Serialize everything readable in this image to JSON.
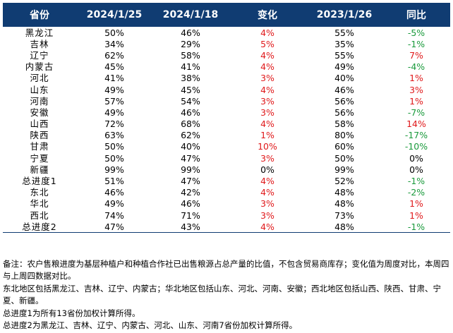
{
  "table": {
    "headers": [
      "省份",
      "2024/1/25",
      "2024/1/18",
      "变化",
      "2023/1/26",
      "同比"
    ],
    "colors": {
      "header_bg": "#103c72",
      "up": "#e0191b",
      "down": "#1a9a3c",
      "flat": "#000000"
    },
    "rows": [
      {
        "province": "黑龙江",
        "cur": "50%",
        "prev": "46%",
        "change": "4%",
        "change_dir": "up",
        "last_year": "55%",
        "yoy": "-5%",
        "yoy_dir": "down"
      },
      {
        "province": "吉林",
        "cur": "34%",
        "prev": "29%",
        "change": "5%",
        "change_dir": "up",
        "last_year": "35%",
        "yoy": "-1%",
        "yoy_dir": "down"
      },
      {
        "province": "辽宁",
        "cur": "62%",
        "prev": "58%",
        "change": "4%",
        "change_dir": "up",
        "last_year": "55%",
        "yoy": "7%",
        "yoy_dir": "up"
      },
      {
        "province": "内蒙古",
        "cur": "45%",
        "prev": "41%",
        "change": "4%",
        "change_dir": "up",
        "last_year": "49%",
        "yoy": "-4%",
        "yoy_dir": "down"
      },
      {
        "province": "河北",
        "cur": "41%",
        "prev": "38%",
        "change": "3%",
        "change_dir": "up",
        "last_year": "40%",
        "yoy": "1%",
        "yoy_dir": "up"
      },
      {
        "province": "山东",
        "cur": "49%",
        "prev": "45%",
        "change": "4%",
        "change_dir": "up",
        "last_year": "46%",
        "yoy": "3%",
        "yoy_dir": "up"
      },
      {
        "province": "河南",
        "cur": "57%",
        "prev": "54%",
        "change": "3%",
        "change_dir": "up",
        "last_year": "56%",
        "yoy": "1%",
        "yoy_dir": "up"
      },
      {
        "province": "安徽",
        "cur": "49%",
        "prev": "46%",
        "change": "3%",
        "change_dir": "up",
        "last_year": "56%",
        "yoy": "-7%",
        "yoy_dir": "down"
      },
      {
        "province": "山西",
        "cur": "72%",
        "prev": "68%",
        "change": "4%",
        "change_dir": "up",
        "last_year": "58%",
        "yoy": "14%",
        "yoy_dir": "up"
      },
      {
        "province": "陕西",
        "cur": "63%",
        "prev": "62%",
        "change": "1%",
        "change_dir": "up",
        "last_year": "80%",
        "yoy": "-17%",
        "yoy_dir": "down"
      },
      {
        "province": "甘肃",
        "cur": "50%",
        "prev": "40%",
        "change": "10%",
        "change_dir": "up",
        "last_year": "60%",
        "yoy": "-10%",
        "yoy_dir": "down"
      },
      {
        "province": "宁夏",
        "cur": "50%",
        "prev": "47%",
        "change": "3%",
        "change_dir": "up",
        "last_year": "50%",
        "yoy": "0%",
        "yoy_dir": "flat"
      },
      {
        "province": "新疆",
        "cur": "99%",
        "prev": "99%",
        "change": "0%",
        "change_dir": "flat",
        "last_year": "99%",
        "yoy": "0%",
        "yoy_dir": "flat"
      },
      {
        "province": "总进度1",
        "cur": "51%",
        "prev": "47%",
        "change": "4%",
        "change_dir": "up",
        "last_year": "52%",
        "yoy": "-1%",
        "yoy_dir": "down"
      },
      {
        "province": "东北",
        "cur": "46%",
        "prev": "42%",
        "change": "4%",
        "change_dir": "up",
        "last_year": "48%",
        "yoy": "-2%",
        "yoy_dir": "down"
      },
      {
        "province": "华北",
        "cur": "49%",
        "prev": "46%",
        "change": "3%",
        "change_dir": "up",
        "last_year": "48%",
        "yoy": "1%",
        "yoy_dir": "up"
      },
      {
        "province": "西北",
        "cur": "74%",
        "prev": "71%",
        "change": "3%",
        "change_dir": "up",
        "last_year": "73%",
        "yoy": "1%",
        "yoy_dir": "up"
      },
      {
        "province": "总进度2",
        "cur": "47%",
        "prev": "43%",
        "change": "4%",
        "change_dir": "up",
        "last_year": "48%",
        "yoy": "-1%",
        "yoy_dir": "down"
      }
    ]
  },
  "notes": [
    "备注：农户售粮进度为基层种植户和种植合作社已出售粮源占总产量的比值，不包含贸易商库存；变化值为周度对比，本周四与上周四数据对比。",
    "东北地区包括黑龙江、吉林、辽宁、内蒙古；华北地区包括山东、河北、河南、安徽；西北地区包括山西、陕西、甘肃、宁夏、新疆。",
    "总进度1为所有13省份加权计算所得。",
    "总进度2为黑龙江、吉林、辽宁、内蒙古、河北、山东、河南7省份加权计算所得。"
  ]
}
